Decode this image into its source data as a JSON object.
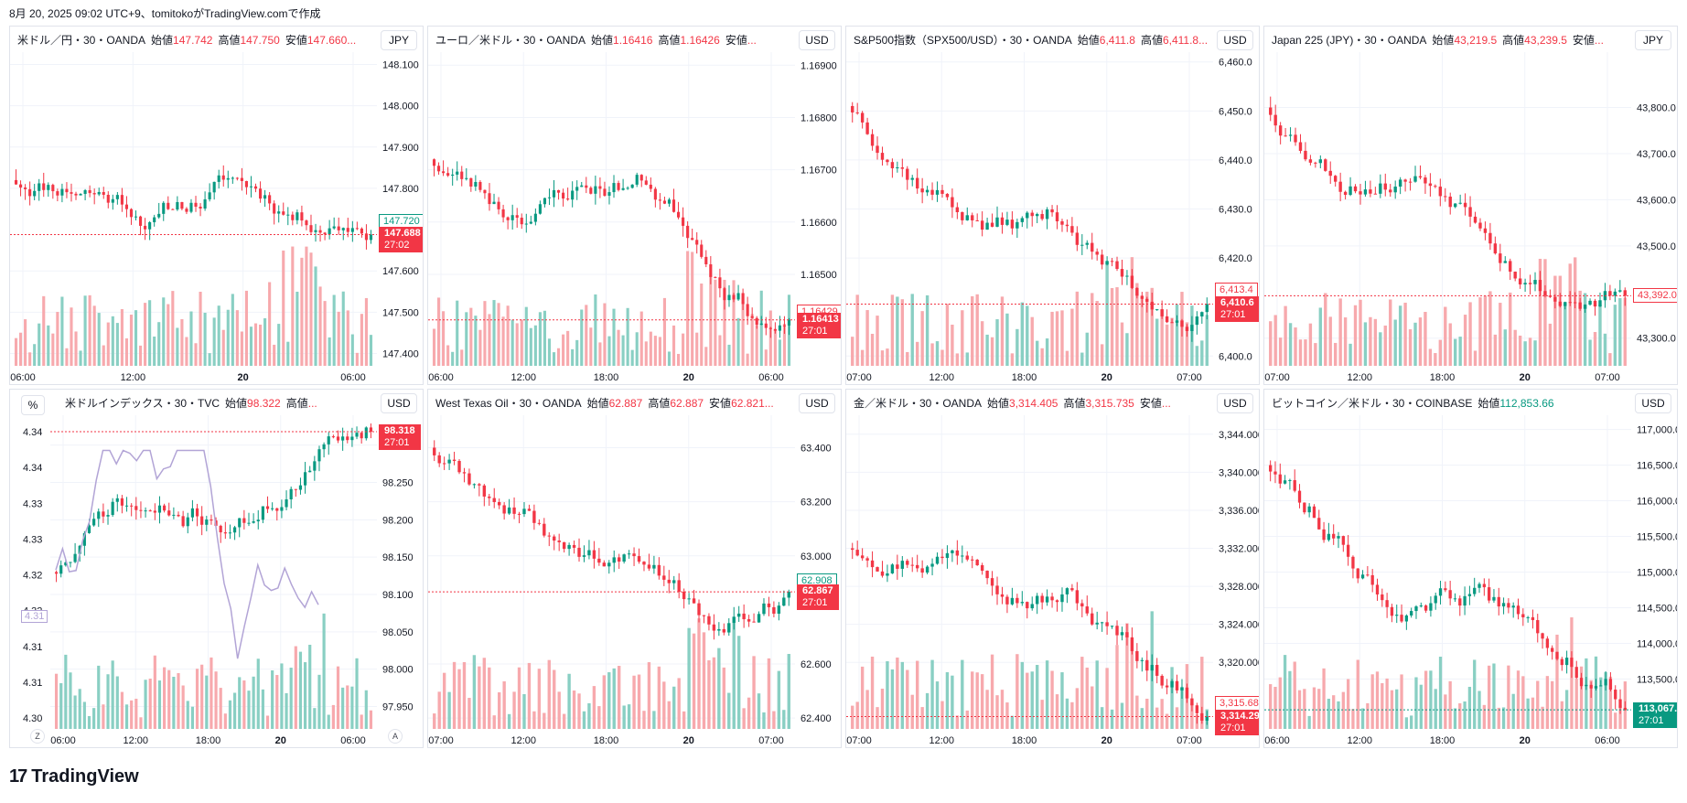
{
  "header": {
    "caption": "8月 20, 2025 09:02 UTC+9、tomitokoがTradingView.comで作成"
  },
  "footer": {
    "logo_mark": "17",
    "brand": "TradingView"
  },
  "labels": {
    "open": "始値",
    "high": "高値",
    "low": "安値"
  },
  "colors": {
    "up": "#089981",
    "down": "#f23645",
    "up_vol": "#89cfc3",
    "down_vol": "#f7a9ad",
    "grid": "#f0f3fa",
    "text": "#131722",
    "dxy_line": "#b2a4d6"
  },
  "chart_data": [
    {
      "type": "candlestick",
      "title": "米ドル／円・30・OANDA",
      "open": "147.742",
      "high": "147.750",
      "low": "147.660...",
      "currency": "JPY",
      "yticks": [
        "148.100",
        "148.000",
        "147.900",
        "147.800",
        "147.600",
        "147.500",
        "147.400"
      ],
      "ytick_values": [
        148.1,
        148.0,
        147.9,
        147.8,
        147.6,
        147.5,
        147.4
      ],
      "xticks": [
        "06:00",
        "12:00",
        "20",
        "06:00"
      ],
      "ylim": [
        147.37,
        148.13
      ],
      "seed": 11,
      "start": 147.82,
      "end": 147.688,
      "bias": [
        0.1,
        -0.25,
        0.3,
        -0.35,
        0.2
      ],
      "current": {
        "price": "147.688",
        "countdown": "27:02",
        "color": "down",
        "value": 147.688
      },
      "extra": {
        "price": "147.720",
        "value": 147.72,
        "color": "up",
        "style": "outline"
      },
      "candles": 78
    },
    {
      "type": "candlestick",
      "title": "ユーロ／米ドル・30・OANDA",
      "open": "1.16416",
      "high": "1.16426",
      "low": "...",
      "currency": "USD",
      "yticks": [
        "1.16900",
        "1.16800",
        "1.16700",
        "1.16600",
        "1.16500"
      ],
      "ytick_values": [
        1.169,
        1.168,
        1.167,
        1.166,
        1.165
      ],
      "xticks": [
        "06:00",
        "12:00",
        "18:00",
        "20",
        "06:00"
      ],
      "ylim": [
        1.16325,
        1.16925
      ],
      "seed": 23,
      "start": 1.1672,
      "end": 1.16413,
      "bias": [
        -0.3,
        0.6,
        0.4,
        -0.5,
        -0.3
      ],
      "current": {
        "price": "1.16413",
        "countdown": "27:01",
        "color": "down",
        "value": 1.16413
      },
      "extra": {
        "price": "1.16429",
        "value": 1.16429,
        "color": "down",
        "style": "outline"
      },
      "candles": 78
    },
    {
      "type": "candlestick",
      "title": "S&P500指数（SPX500/USD）・30・OANDA",
      "open": "6,411.8",
      "high": "6,411.8...",
      "currency": "USD",
      "yticks": [
        "6,460.0",
        "6,450.0",
        "6,440.0",
        "6,430.0",
        "6,420.0",
        "6,400.0"
      ],
      "ytick_values": [
        6460,
        6450,
        6440,
        6430,
        6420,
        6400
      ],
      "xticks": [
        "07:00",
        "12:00",
        "18:00",
        "20",
        "07:00"
      ],
      "ylim": [
        6398,
        6462
      ],
      "seed": 37,
      "start": 6451,
      "end": 6410.6,
      "bias": [
        -0.3,
        -0.2,
        0.3,
        -0.7,
        0.2
      ],
      "current": {
        "price": "6,410.6",
        "countdown": "27:01",
        "color": "down",
        "value": 6410.6
      },
      "extra": {
        "price": "6,413.4",
        "value": 6413.4,
        "color": "down",
        "style": "outline"
      },
      "candles": 72
    },
    {
      "type": "candlestick",
      "title": "Japan 225 (JPY)・30・OANDA",
      "open": "43,219.5",
      "high": "43,239.5",
      "low": "...",
      "currency": "JPY",
      "yticks": [
        "43,800.0",
        "43,700.0",
        "43,600.0",
        "43,500.0",
        "43,300.0"
      ],
      "ytick_values": [
        43800,
        43700,
        43600,
        43500,
        43300
      ],
      "xticks": [
        "07:00",
        "12:00",
        "18:00",
        "20",
        "07:00"
      ],
      "ylim": [
        43240,
        43920
      ],
      "seed": 53,
      "start": 43800,
      "end": 43392,
      "bias": [
        -0.5,
        0.4,
        -0.2,
        -0.5,
        0.1
      ],
      "current": {
        "price": "43,392.0",
        "countdown": "",
        "color": "down",
        "value": 43392,
        "style": "outline"
      },
      "candles": 72
    },
    {
      "type": "line+candlestick",
      "title": "米ドルインデックス・30・TVC",
      "open": "98.322",
      "high": "...",
      "currency": "USD",
      "left_axis_unit": "%",
      "left_yticks": [
        "4.34",
        "4.34",
        "4.33",
        "4.33",
        "4.32",
        "4.32",
        "4.31",
        "4.31",
        "4.30"
      ],
      "left_badge": "4.31",
      "yticks": [
        "98.300",
        "98.250",
        "98.200",
        "98.150",
        "98.100",
        "98.050",
        "98.000",
        "97.950"
      ],
      "ytick_values": [
        98.3,
        98.25,
        98.2,
        98.15,
        98.1,
        98.05,
        98.0,
        97.95
      ],
      "xticks": [
        "06:00",
        "12:00",
        "18:00",
        "20",
        "06:00"
      ],
      "ylim": [
        97.92,
        98.34
      ],
      "seed": 71,
      "start": 98.13,
      "end": 98.318,
      "bias": [
        0.5,
        -0.6,
        -0.2,
        0.6,
        0.4
      ],
      "current": {
        "price": "98.318",
        "countdown": "27:01",
        "color": "down",
        "value": 98.318
      },
      "axis_buttons": [
        "Z",
        "A"
      ],
      "candles": 68
    },
    {
      "type": "candlestick",
      "title": "West Texas Oil・30・OANDA",
      "open": "62.887",
      "high": "62.887",
      "low": "62.821...",
      "currency": "USD",
      "yticks": [
        "63.400",
        "63.200",
        "63.000",
        "62.600",
        "62.400"
      ],
      "ytick_values": [
        63.4,
        63.2,
        63.0,
        62.6,
        62.4
      ],
      "xticks": [
        "07:00",
        "12:00",
        "18:00",
        "20",
        "07:00"
      ],
      "ylim": [
        62.36,
        63.52
      ],
      "seed": 89,
      "start": 63.4,
      "end": 62.867,
      "bias": [
        -0.6,
        -0.3,
        0.1,
        -0.2,
        0.6
      ],
      "current": {
        "price": "62.867",
        "countdown": "27:01",
        "color": "down",
        "value": 62.867
      },
      "extra": {
        "price": "62.908",
        "value": 62.908,
        "color": "up",
        "style": "outline"
      },
      "candles": 72
    },
    {
      "type": "candlestick",
      "title": "金／米ドル・30・OANDA",
      "open": "3,314.405",
      "high": "3,315.735",
      "low": "...",
      "currency": "USD",
      "yticks": [
        "3,344.000",
        "3,340.000",
        "3,336.000",
        "3,332.000",
        "3,328.000",
        "3,324.000",
        "3,320.000"
      ],
      "ytick_values": [
        3344,
        3340,
        3336,
        3332,
        3328,
        3324,
        3320
      ],
      "xticks": [
        "07:00",
        "12:00",
        "18:00",
        "20",
        "07:00"
      ],
      "ylim": [
        3313,
        3346
      ],
      "seed": 97,
      "start": 3332,
      "end": 3314.295,
      "bias": [
        0.5,
        0.4,
        0.2,
        -0.8,
        -0.3
      ],
      "current": {
        "price": "3,314.295",
        "countdown": "27:01",
        "color": "down",
        "value": 3314.295
      },
      "extra": {
        "price": "3,315.680",
        "value": 3315.68,
        "color": "down",
        "style": "outline"
      },
      "candles": 72
    },
    {
      "type": "candlestick",
      "title": "ビットコイン／米ドル・30・COINBASE",
      "open": "112,853.66",
      "open_color": "up",
      "currency": "USD",
      "yticks": [
        "117,000.00",
        "116,500.00",
        "116,000.00",
        "115,500.00",
        "115,000.00",
        "114,500.00",
        "114,000.00",
        "113,500.00"
      ],
      "ytick_values": [
        117000,
        116500,
        116000,
        115500,
        115000,
        114500,
        114000,
        113500
      ],
      "xticks": [
        "06:00",
        "12:00",
        "18:00",
        "20",
        "06:00"
      ],
      "ylim": [
        112800,
        117200
      ],
      "seed": 113,
      "start": 116500,
      "end": 113067,
      "bias": [
        -0.4,
        -0.3,
        0.2,
        -0.7,
        -0.1
      ],
      "current": {
        "price": "113,067.63",
        "countdown": "27:01",
        "color": "up",
        "value": 113067.63
      },
      "extra": {
        "price": "112,916.26",
        "value": 112916.26,
        "color": "down",
        "style": "outline"
      },
      "candles": 74
    }
  ]
}
